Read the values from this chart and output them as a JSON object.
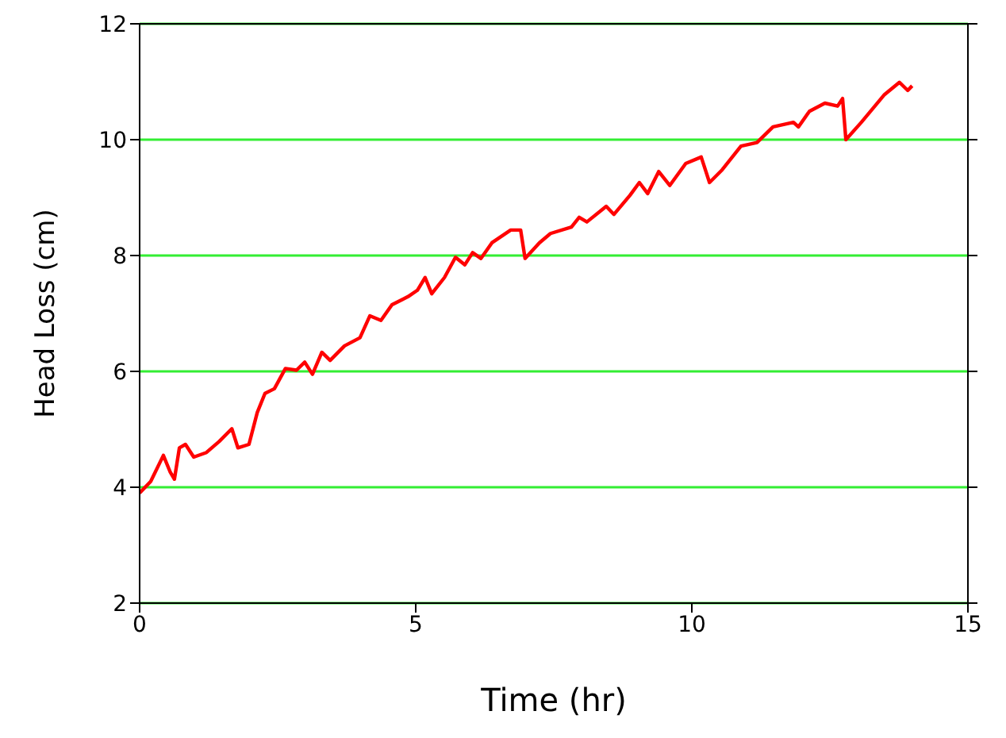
{
  "chart_data": {
    "type": "line",
    "xlabel": "Time (hr)",
    "ylabel": "Head Loss (cm)",
    "xlim": [
      0,
      15
    ],
    "xticks": [
      0,
      5,
      10,
      15
    ],
    "ylim": [
      2,
      12
    ],
    "yticks": [
      2,
      4,
      6,
      8,
      10,
      12
    ],
    "grid": "y",
    "marker": "none",
    "line_style": "solid",
    "series": [
      {
        "color": "#ff0000",
        "x": [
          0,
          0.2,
          0.43,
          0.55,
          0.63,
          0.72,
          0.83,
          0.98,
          1.21,
          1.44,
          1.67,
          1.78,
          1.98,
          2.13,
          2.27,
          2.44,
          2.64,
          2.84,
          2.99,
          3.13,
          3.3,
          3.45,
          3.71,
          3.99,
          4.17,
          4.37,
          4.57,
          4.86,
          5.03,
          5.17,
          5.29,
          5.52,
          5.72,
          5.89,
          6.03,
          6.18,
          6.38,
          6.72,
          6.9,
          6.98,
          7.24,
          7.44,
          7.82,
          7.96,
          8.1,
          8.45,
          8.59,
          8.88,
          9.05,
          9.2,
          9.4,
          9.6,
          9.89,
          10.17,
          10.32,
          10.55,
          10.89,
          11.18,
          11.47,
          11.84,
          11.93,
          12.13,
          12.41,
          12.64,
          12.73,
          12.79,
          13.07,
          13.48,
          13.76,
          13.91,
          13.99
        ],
        "values": [
          3.9,
          4.1,
          4.55,
          4.27,
          4.14,
          4.68,
          4.74,
          4.52,
          4.6,
          4.79,
          5.01,
          4.68,
          4.74,
          5.29,
          5.62,
          5.7,
          6.05,
          6.02,
          6.16,
          5.95,
          6.33,
          6.19,
          6.44,
          6.58,
          6.96,
          6.88,
          7.15,
          7.29,
          7.4,
          7.62,
          7.34,
          7.62,
          7.97,
          7.84,
          8.05,
          7.95,
          8.22,
          8.44,
          8.44,
          7.95,
          8.22,
          8.38,
          8.49,
          8.66,
          8.58,
          8.85,
          8.71,
          9.04,
          9.26,
          9.07,
          9.45,
          9.21,
          9.59,
          9.7,
          9.26,
          9.48,
          9.89,
          9.95,
          10.22,
          10.3,
          10.22,
          10.49,
          10.63,
          10.58,
          10.71,
          10,
          10.3,
          10.77,
          10.99,
          10.85,
          10.93
        ]
      }
    ]
  }
}
